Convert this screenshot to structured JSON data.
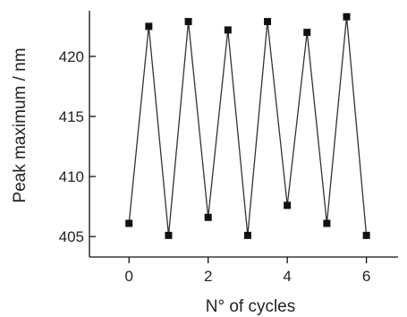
{
  "chart_data": {
    "type": "line",
    "title": "",
    "xlabel": "N° of cycles",
    "ylabel": "Peak maximum / nm",
    "xlim": [
      -1,
      6.8
    ],
    "ylim": [
      403.3,
      423.8
    ],
    "xticks": [
      0,
      2,
      4,
      6
    ],
    "yticks": [
      405,
      410,
      415,
      420
    ],
    "grid": false,
    "legend": "none",
    "marker": "square",
    "series": [
      {
        "x": [
          0,
          0.5,
          1,
          1.5,
          2,
          2.5,
          3,
          3.5,
          4,
          4.5,
          5,
          5.5,
          6
        ],
        "y": [
          406.1,
          422.5,
          405.1,
          422.9,
          406.6,
          422.2,
          405.1,
          422.9,
          407.6,
          422.0,
          406.1,
          423.3,
          405.1
        ]
      }
    ]
  }
}
